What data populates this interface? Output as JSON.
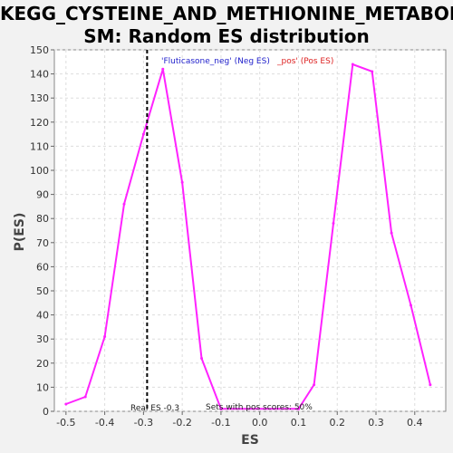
{
  "title_line1": "KEGG_CYSTEINE_AND_METHIONINE_METABOLI",
  "title_line2": "SM: Random ES distribution",
  "colors": {
    "line": "#ff22ff",
    "neg": "#2222cc",
    "pos": "#dd2222",
    "real_line": "#000000"
  },
  "chart_data": {
    "type": "line",
    "xlabel": "ES",
    "ylabel": "P(ES)",
    "xlim": [
      -0.53,
      0.48
    ],
    "ylim": [
      0,
      150
    ],
    "xticks": [
      "-0.5",
      "-0.4",
      "-0.3",
      "-0.2",
      "-0.1",
      "0.0",
      "0.1",
      "0.2",
      "0.3",
      "0.4"
    ],
    "yticks": [
      "0",
      "10",
      "20",
      "30",
      "40",
      "50",
      "60",
      "70",
      "80",
      "90",
      "100",
      "110",
      "120",
      "130",
      "140",
      "150"
    ],
    "grid": true,
    "series": [
      {
        "x": [
          -0.5,
          -0.45,
          -0.4,
          -0.35,
          -0.3,
          -0.25,
          -0.2,
          -0.15,
          -0.1,
          0.1,
          0.14,
          0.19,
          0.24,
          0.29,
          0.34,
          0.39,
          0.44
        ],
        "values": [
          3,
          6,
          31,
          86,
          115,
          142,
          95,
          22,
          1,
          1,
          11,
          78,
          144,
          141,
          74,
          44,
          11
        ]
      }
    ],
    "real_es": -0.3,
    "annotations": {
      "real_es_label": "Real ES -0.3",
      "pos_scores_label": "Sets with pos scores: 50%",
      "legend_neg": "'Fluticasone_neg' (Neg ES)",
      "legend_pos": "_pos' (Pos ES)"
    }
  }
}
